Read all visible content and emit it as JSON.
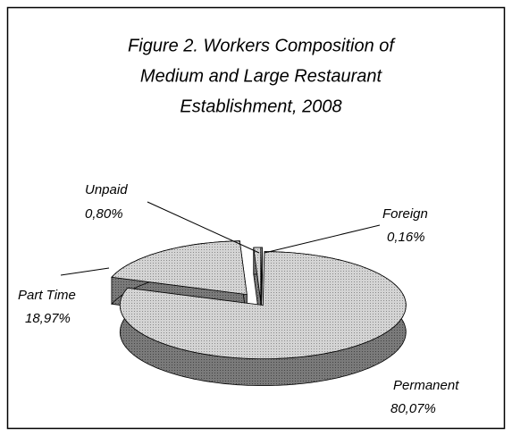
{
  "chart_data": {
    "type": "pie",
    "title": [
      "Figure 2.  Workers Composition of",
      "Medium and Large Restaurant",
      "Establishment, 2008"
    ],
    "categories": [
      "Foreign",
      "Permanent",
      "Part Time",
      "Unpaid"
    ],
    "values": [
      0.16,
      80.07,
      18.97,
      0.8
    ],
    "value_labels": [
      "0,16%",
      "80,07%",
      "18,97%",
      "0,80%"
    ],
    "colors": [
      "#d0d0d0",
      "#c8c8c8",
      "#c8c8c8",
      "#d8d8d8"
    ]
  }
}
